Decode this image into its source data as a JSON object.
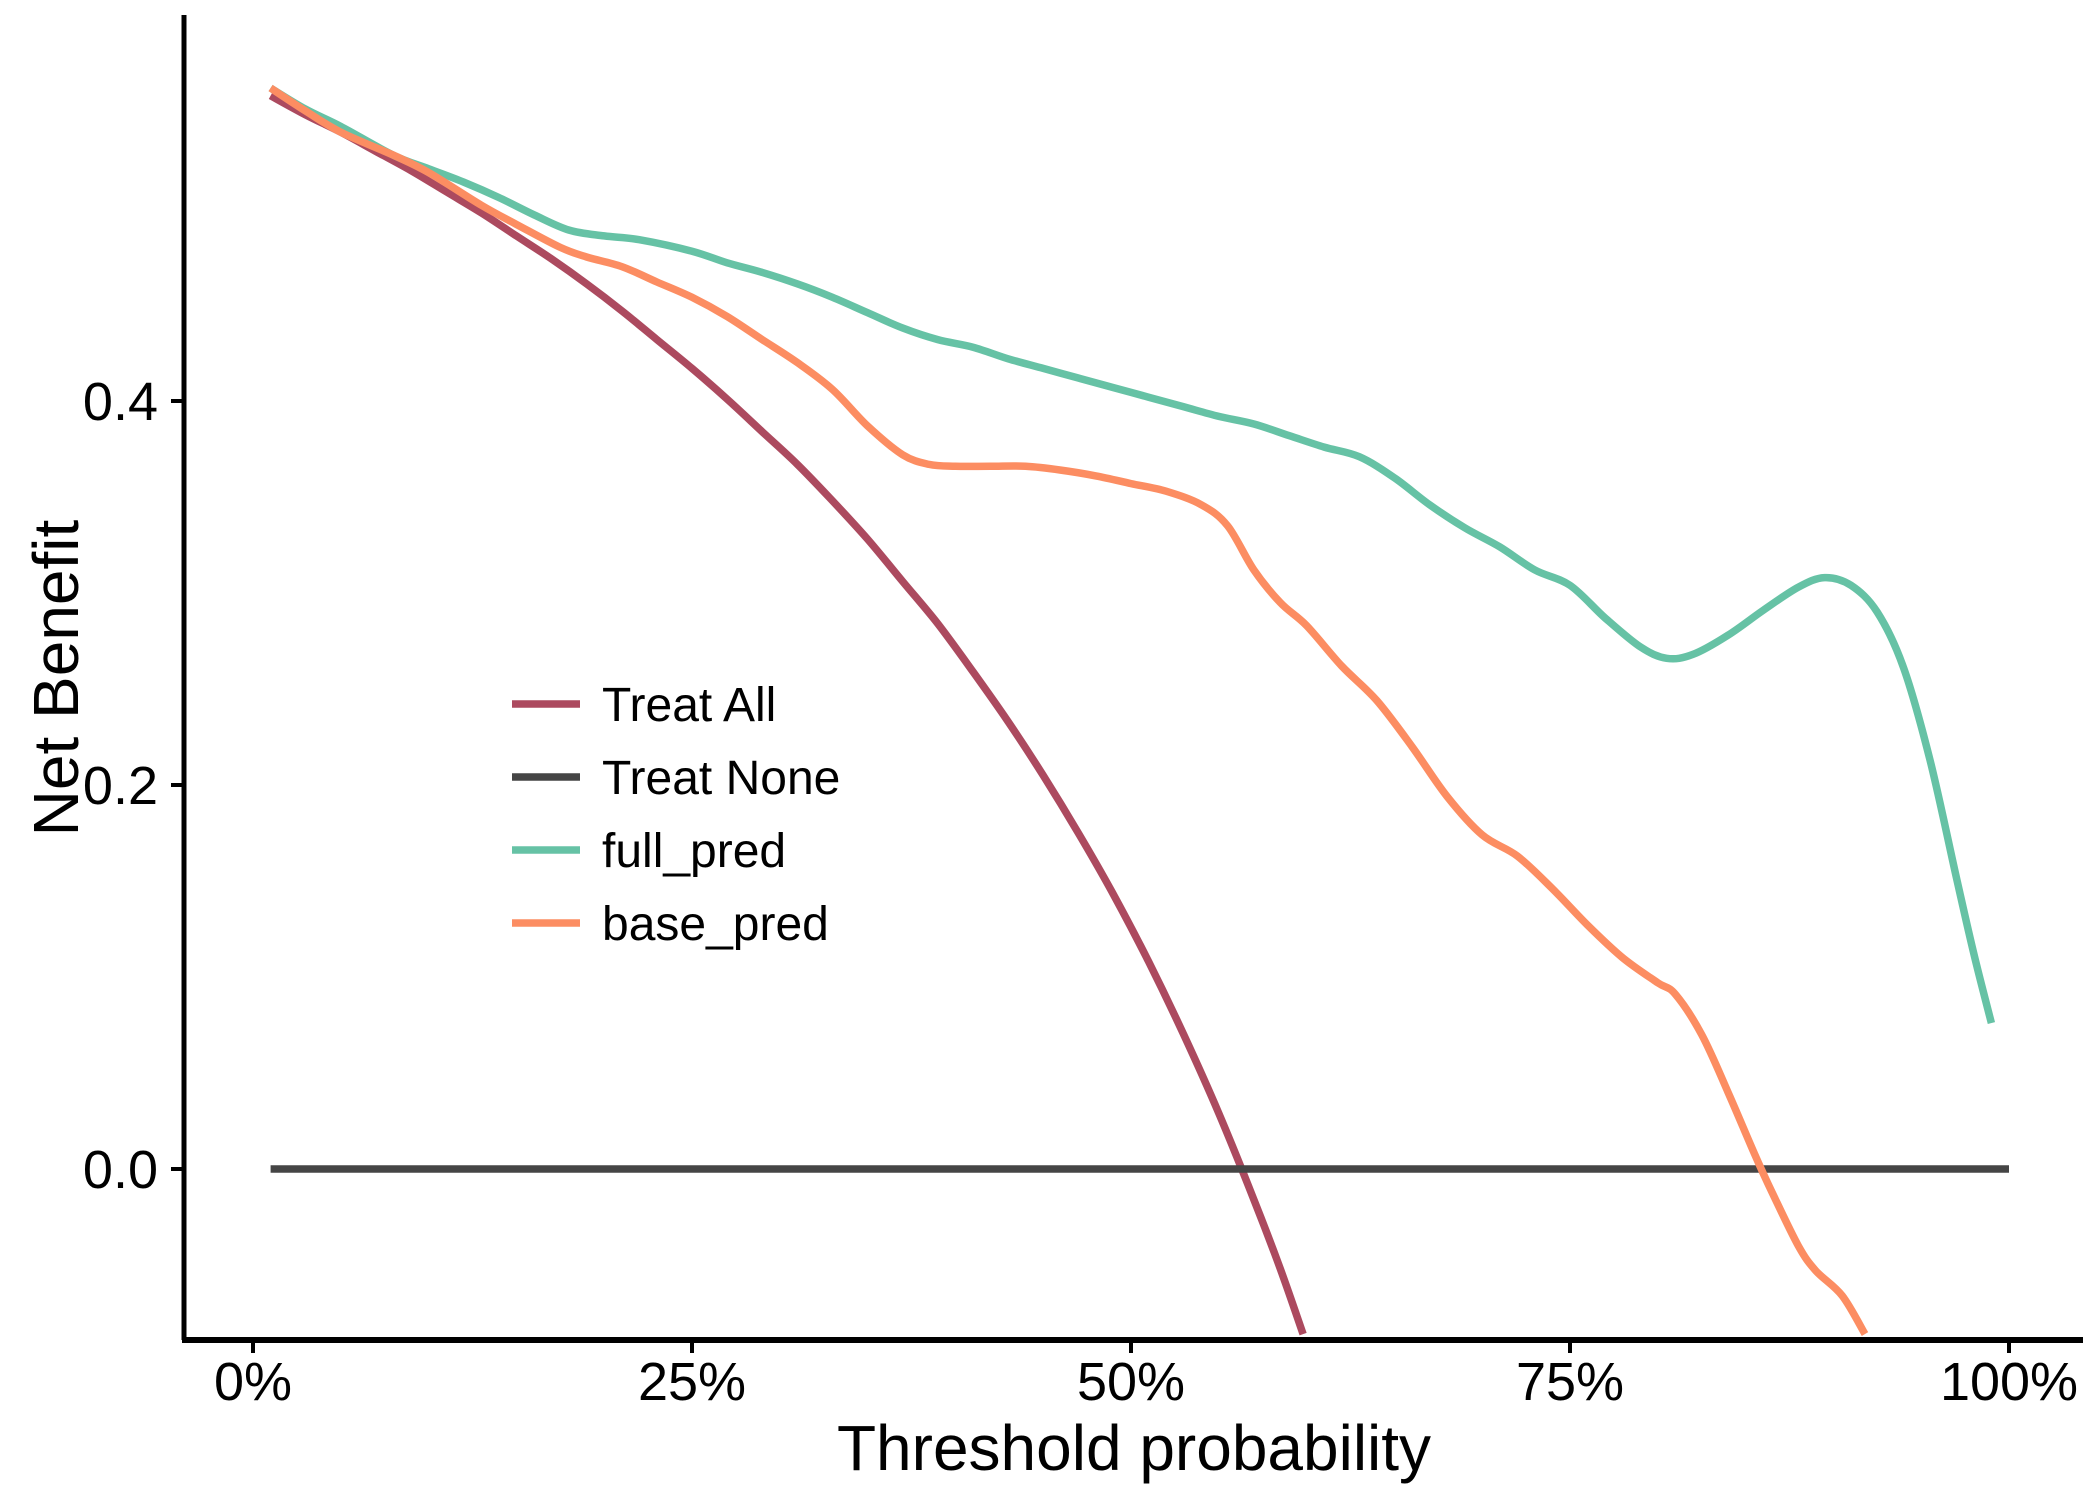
{
  "chart_data": {
    "type": "line",
    "title": "",
    "xlabel": "Threshold probability",
    "ylabel": "Net Benefit",
    "grid": false,
    "background": "#ffffff",
    "axis_color": "#000000",
    "text_color": "#000000",
    "legend_position": "inside-center-left",
    "xlim_pct": [
      -3.9,
      104.2
    ],
    "ylim": [
      -0.089,
      0.601
    ],
    "x_ticks": [
      {
        "value": 0,
        "label": "0%"
      },
      {
        "value": 25,
        "label": "25%"
      },
      {
        "value": 50,
        "label": "50%"
      },
      {
        "value": 75,
        "label": "75%"
      },
      {
        "value": 100,
        "label": "100%"
      }
    ],
    "y_ticks": [
      {
        "value": 0.0,
        "label": "0.0"
      },
      {
        "value": 0.2,
        "label": "0.2"
      },
      {
        "value": 0.4,
        "label": "0.4"
      }
    ],
    "series": [
      {
        "name": "Treat All",
        "color": "#AC4A5F",
        "points": [
          [
            1,
            0.559
          ],
          [
            3,
            0.549
          ],
          [
            5,
            0.54
          ],
          [
            7,
            0.53
          ],
          [
            9,
            0.52
          ],
          [
            11,
            0.509
          ],
          [
            13,
            0.498
          ],
          [
            15,
            0.486
          ],
          [
            17,
            0.474
          ],
          [
            19,
            0.461
          ],
          [
            21,
            0.447
          ],
          [
            23,
            0.432
          ],
          [
            25,
            0.417
          ],
          [
            27,
            0.401
          ],
          [
            29,
            0.384
          ],
          [
            31,
            0.367
          ],
          [
            33,
            0.348
          ],
          [
            35,
            0.328
          ],
          [
            37,
            0.306
          ],
          [
            39,
            0.284
          ],
          [
            41,
            0.259
          ],
          [
            43,
            0.233
          ],
          [
            45,
            0.205
          ],
          [
            47,
            0.175
          ],
          [
            49,
            0.143
          ],
          [
            51,
            0.108
          ],
          [
            53,
            0.07
          ],
          [
            55,
            0.029
          ],
          [
            57,
            -0.016
          ],
          [
            58.5,
            -0.052
          ],
          [
            59.8,
            -0.086
          ]
        ]
      },
      {
        "name": "Treat None",
        "color": "#454545",
        "points": [
          [
            1,
            0
          ],
          [
            100,
            0
          ]
        ]
      },
      {
        "name": "full_pred",
        "color": "#66C2A5",
        "points": [
          [
            1,
            0.563
          ],
          [
            3,
            0.552
          ],
          [
            5,
            0.543
          ],
          [
            8,
            0.528
          ],
          [
            10,
            0.521
          ],
          [
            12,
            0.514
          ],
          [
            14,
            0.506
          ],
          [
            16,
            0.497
          ],
          [
            18,
            0.489
          ],
          [
            20,
            0.486
          ],
          [
            22,
            0.484
          ],
          [
            25,
            0.478
          ],
          [
            27,
            0.472
          ],
          [
            29,
            0.467
          ],
          [
            31,
            0.461
          ],
          [
            33,
            0.454
          ],
          [
            35,
            0.446
          ],
          [
            37,
            0.438
          ],
          [
            39,
            0.432
          ],
          [
            41,
            0.428
          ],
          [
            43,
            0.422
          ],
          [
            45,
            0.417
          ],
          [
            47,
            0.412
          ],
          [
            49,
            0.407
          ],
          [
            51,
            0.402
          ],
          [
            53,
            0.397
          ],
          [
            55,
            0.392
          ],
          [
            57,
            0.388
          ],
          [
            59,
            0.382
          ],
          [
            61,
            0.376
          ],
          [
            63,
            0.371
          ],
          [
            65,
            0.36
          ],
          [
            67,
            0.346
          ],
          [
            69,
            0.334
          ],
          [
            71,
            0.324
          ],
          [
            73,
            0.312
          ],
          [
            75,
            0.304
          ],
          [
            77,
            0.287
          ],
          [
            79,
            0.272
          ],
          [
            80.5,
            0.266
          ],
          [
            82,
            0.268
          ],
          [
            84,
            0.278
          ],
          [
            86,
            0.291
          ],
          [
            88,
            0.303
          ],
          [
            89.5,
            0.308
          ],
          [
            91,
            0.304
          ],
          [
            92.5,
            0.29
          ],
          [
            94,
            0.261
          ],
          [
            95.5,
            0.213
          ],
          [
            97,
            0.152
          ],
          [
            98,
            0.112
          ],
          [
            99,
            0.076
          ]
        ]
      },
      {
        "name": "base_pred",
        "color": "#FC8D62",
        "points": [
          [
            1,
            0.563
          ],
          [
            3,
            0.551
          ],
          [
            5,
            0.54
          ],
          [
            8,
            0.528
          ],
          [
            10,
            0.519
          ],
          [
            13,
            0.502
          ],
          [
            15,
            0.492
          ],
          [
            17.5,
            0.48
          ],
          [
            19,
            0.475
          ],
          [
            21,
            0.47
          ],
          [
            23,
            0.462
          ],
          [
            25,
            0.454
          ],
          [
            27,
            0.444
          ],
          [
            29,
            0.432
          ],
          [
            31,
            0.42
          ],
          [
            33,
            0.406
          ],
          [
            35,
            0.387
          ],
          [
            37,
            0.372
          ],
          [
            38.5,
            0.367
          ],
          [
            40,
            0.366
          ],
          [
            42,
            0.366
          ],
          [
            44,
            0.366
          ],
          [
            46,
            0.364
          ],
          [
            48,
            0.361
          ],
          [
            50,
            0.357
          ],
          [
            52,
            0.353
          ],
          [
            54,
            0.346
          ],
          [
            55.5,
            0.335
          ],
          [
            57,
            0.312
          ],
          [
            58.5,
            0.295
          ],
          [
            60,
            0.283
          ],
          [
            62,
            0.262
          ],
          [
            64,
            0.244
          ],
          [
            66,
            0.22
          ],
          [
            68,
            0.194
          ],
          [
            70,
            0.174
          ],
          [
            72,
            0.163
          ],
          [
            74,
            0.146
          ],
          [
            76,
            0.127
          ],
          [
            78,
            0.11
          ],
          [
            80,
            0.097
          ],
          [
            81,
            0.091
          ],
          [
            82.5,
            0.07
          ],
          [
            84,
            0.04
          ],
          [
            85.5,
            0.008
          ],
          [
            86.5,
            -0.012
          ],
          [
            88,
            -0.04
          ],
          [
            89,
            -0.053
          ],
          [
            90.5,
            -0.066
          ],
          [
            91.8,
            -0.086
          ]
        ]
      }
    ],
    "legend": {
      "items": [
        "Treat All",
        "Treat None",
        "full_pred",
        "base_pred"
      ]
    }
  }
}
